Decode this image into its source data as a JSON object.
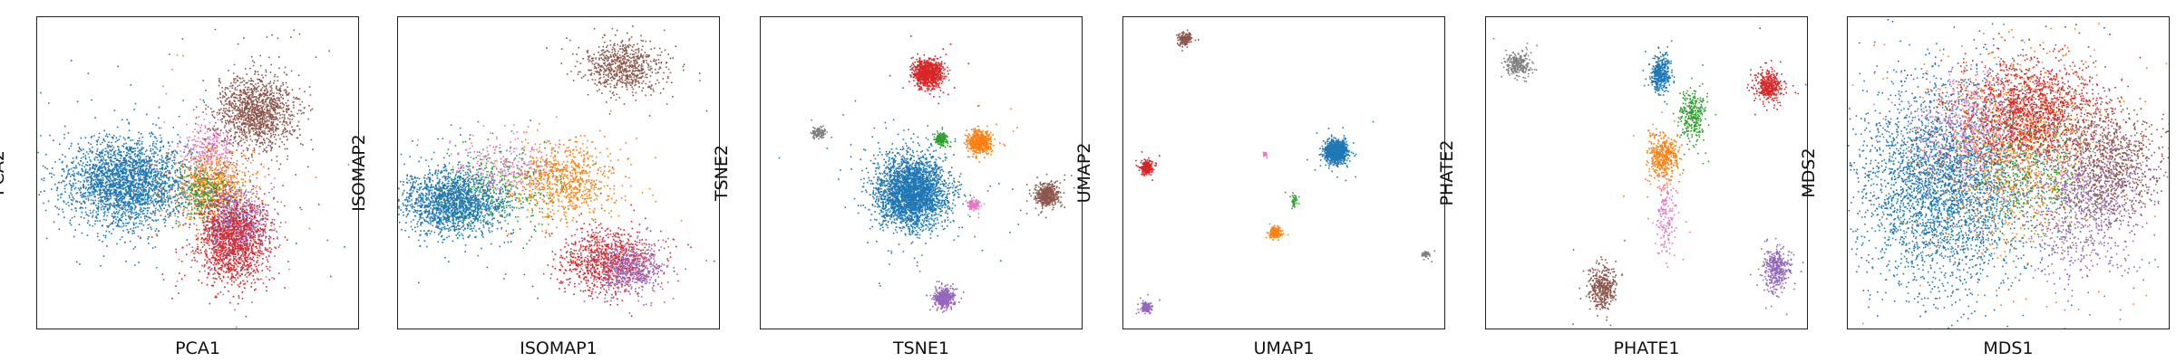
{
  "palette": {
    "blue": "#1f77b4",
    "orange": "#ff7f0e",
    "green": "#2ca02c",
    "red": "#d62728",
    "purple": "#9467bd",
    "brown": "#8c564b",
    "pink": "#e377c2",
    "gray": "#7f7f7f"
  },
  "chart_data": [
    {
      "type": "scatter",
      "xlabel": "PCA1",
      "ylabel": "PCA2",
      "ticks": "hidden",
      "xlim": [
        0,
        100
      ],
      "ylim": [
        0,
        100
      ],
      "clusters": [
        {
          "color": "blue",
          "cx": 28,
          "cy": 47,
          "sx": 10,
          "sy": 7,
          "n": 2600
        },
        {
          "color": "pink",
          "cx": 54,
          "cy": 58,
          "sx": 4,
          "sy": 5,
          "n": 300
        },
        {
          "color": "brown",
          "cx": 68,
          "cy": 70,
          "sx": 6,
          "sy": 6,
          "n": 1300
        },
        {
          "color": "orange",
          "cx": 55,
          "cy": 45,
          "sx": 6,
          "sy": 6,
          "n": 800
        },
        {
          "color": "green",
          "cx": 52,
          "cy": 44,
          "sx": 4,
          "sy": 4,
          "n": 250
        },
        {
          "color": "purple",
          "cx": 62,
          "cy": 34,
          "sx": 5,
          "sy": 6,
          "n": 800
        },
        {
          "color": "red",
          "cx": 61,
          "cy": 28,
          "sx": 6,
          "sy": 7,
          "n": 1200
        }
      ]
    },
    {
      "type": "scatter",
      "xlabel": "ISOMAP1",
      "ylabel": "ISOMAP2",
      "ticks": "hidden",
      "xlim": [
        0,
        100
      ],
      "ylim": [
        0,
        100
      ],
      "clusters": [
        {
          "color": "blue",
          "cx": 17,
          "cy": 41,
          "sx": 8,
          "sy": 5,
          "n": 1800
        },
        {
          "color": "green",
          "cx": 32,
          "cy": 47,
          "sx": 10,
          "sy": 7,
          "n": 350
        },
        {
          "color": "pink",
          "cx": 33,
          "cy": 53,
          "sx": 8,
          "sy": 5,
          "n": 250
        },
        {
          "color": "orange",
          "cx": 52,
          "cy": 48,
          "sx": 8,
          "sy": 6,
          "n": 700
        },
        {
          "color": "brown",
          "cx": 70,
          "cy": 84,
          "sx": 6,
          "sy": 4,
          "n": 700
        },
        {
          "color": "red",
          "cx": 65,
          "cy": 22,
          "sx": 7,
          "sy": 5,
          "n": 900
        },
        {
          "color": "purple",
          "cx": 72,
          "cy": 19,
          "sx": 5,
          "sy": 4,
          "n": 500
        }
      ]
    },
    {
      "type": "scatter",
      "xlabel": "TSNE1",
      "ylabel": "TSNE2",
      "ticks": "hidden",
      "xlim": [
        0,
        100
      ],
      "ylim": [
        0,
        100
      ],
      "clusters": [
        {
          "color": "blue",
          "cx": 47,
          "cy": 44,
          "sx": 5.5,
          "sy": 5.5,
          "n": 3000
        },
        {
          "color": "red",
          "cx": 52,
          "cy": 82,
          "sx": 2.2,
          "sy": 2.2,
          "n": 900
        },
        {
          "color": "orange",
          "cx": 68,
          "cy": 60,
          "sx": 1.8,
          "sy": 1.8,
          "n": 500
        },
        {
          "color": "green",
          "cx": 56,
          "cy": 61,
          "sx": 1.0,
          "sy": 1.0,
          "n": 150
        },
        {
          "color": "brown",
          "cx": 89,
          "cy": 43,
          "sx": 1.8,
          "sy": 1.8,
          "n": 500
        },
        {
          "color": "purple",
          "cx": 57,
          "cy": 10,
          "sx": 1.6,
          "sy": 1.6,
          "n": 400
        },
        {
          "color": "pink",
          "cx": 66,
          "cy": 40,
          "sx": 1.0,
          "sy": 0.8,
          "n": 120
        },
        {
          "color": "gray",
          "cx": 18,
          "cy": 63,
          "sx": 1.0,
          "sy": 1.0,
          "n": 120
        }
      ]
    },
    {
      "type": "scatter",
      "xlabel": "UMAP1",
      "ylabel": "UMAP2",
      "ticks": "hidden",
      "xlim": [
        0,
        100
      ],
      "ylim": [
        0,
        100
      ],
      "clusters": [
        {
          "color": "blue",
          "cx": 66,
          "cy": 57,
          "sx": 1.6,
          "sy": 1.6,
          "n": 1200
        },
        {
          "color": "brown",
          "cx": 19,
          "cy": 93,
          "sx": 1.0,
          "sy": 1.0,
          "n": 200
        },
        {
          "color": "red",
          "cx": 7,
          "cy": 52,
          "sx": 1.0,
          "sy": 1.0,
          "n": 250
        },
        {
          "color": "orange",
          "cx": 47,
          "cy": 31,
          "sx": 0.9,
          "sy": 0.9,
          "n": 200
        },
        {
          "color": "purple",
          "cx": 7,
          "cy": 7,
          "sx": 0.8,
          "sy": 0.8,
          "n": 180
        },
        {
          "color": "green",
          "cx": 53,
          "cy": 41,
          "sx": 0.5,
          "sy": 1.0,
          "n": 40
        },
        {
          "color": "pink",
          "cx": 44,
          "cy": 56,
          "sx": 0.4,
          "sy": 0.4,
          "n": 20
        },
        {
          "color": "gray",
          "cx": 94,
          "cy": 24,
          "sx": 0.6,
          "sy": 0.5,
          "n": 50
        }
      ]
    },
    {
      "type": "scatter",
      "xlabel": "PHATE1",
      "ylabel": "PHATE2",
      "ticks": "hidden",
      "xlim": [
        0,
        100
      ],
      "ylim": [
        0,
        100
      ],
      "clusters": [
        {
          "color": "gray",
          "cx": 10,
          "cy": 85,
          "sx": 2.0,
          "sy": 2.0,
          "n": 250
        },
        {
          "color": "blue",
          "cx": 54,
          "cy": 82,
          "sx": 1.5,
          "sy": 3.0,
          "n": 400
        },
        {
          "color": "green",
          "cx": 64,
          "cy": 69,
          "sx": 2.0,
          "sy": 4.0,
          "n": 300
        },
        {
          "color": "red",
          "cx": 88,
          "cy": 78,
          "sx": 2.0,
          "sy": 2.5,
          "n": 400
        },
        {
          "color": "orange",
          "cx": 55,
          "cy": 55,
          "sx": 2.5,
          "sy": 4.0,
          "n": 400
        },
        {
          "color": "pink",
          "cx": 56,
          "cy": 36,
          "sx": 1.5,
          "sy": 6.0,
          "n": 150
        },
        {
          "color": "brown",
          "cx": 36,
          "cy": 13,
          "sx": 2.0,
          "sy": 3.5,
          "n": 400
        },
        {
          "color": "purple",
          "cx": 90,
          "cy": 19,
          "sx": 2.0,
          "sy": 3.5,
          "n": 400
        }
      ]
    },
    {
      "type": "scatter",
      "xlabel": "MDS1",
      "ylabel": "MDS2",
      "ticks": "hidden",
      "xlim": [
        0,
        100
      ],
      "ylim": [
        0,
        100
      ],
      "clusters": [
        {
          "color": "blue",
          "cx": 30,
          "cy": 47,
          "sx": 13,
          "sy": 16,
          "n": 3500
        },
        {
          "color": "pink",
          "cx": 40,
          "cy": 65,
          "sx": 10,
          "sy": 8,
          "n": 600
        },
        {
          "color": "orange",
          "cx": 52,
          "cy": 58,
          "sx": 12,
          "sy": 14,
          "n": 1200
        },
        {
          "color": "green",
          "cx": 58,
          "cy": 52,
          "sx": 10,
          "sy": 12,
          "n": 500
        },
        {
          "color": "red",
          "cx": 58,
          "cy": 70,
          "sx": 11,
          "sy": 8,
          "n": 1400
        },
        {
          "color": "brown",
          "cx": 82,
          "cy": 52,
          "sx": 7,
          "sy": 9,
          "n": 900
        },
        {
          "color": "purple",
          "cx": 74,
          "cy": 40,
          "sx": 9,
          "sy": 12,
          "n": 800
        }
      ]
    }
  ]
}
